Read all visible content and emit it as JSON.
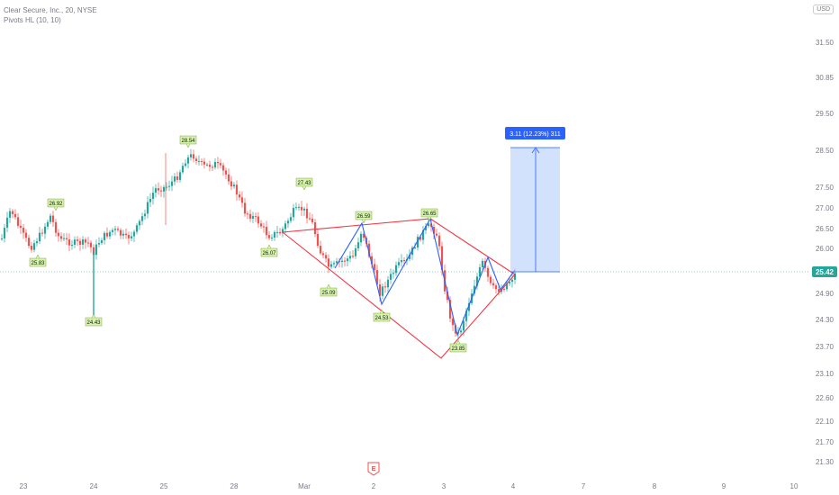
{
  "header": {
    "symbol_line": "Clear Secure, Inc., 20, NYSE",
    "indicator_line": "Pivots HL (10, 10)",
    "currency_badge": "USD"
  },
  "chart_data": {
    "type": "candlestick",
    "y_ticks": [
      "31.50",
      "30.85",
      "29.50",
      "28.50",
      "27.50",
      "27.00",
      "26.50",
      "26.00",
      "25.42",
      "24.90",
      "24.30",
      "23.70",
      "23.10",
      "22.60",
      "22.10",
      "21.70",
      "21.30"
    ],
    "x_ticks": [
      "23",
      "24",
      "25",
      "28",
      "Mar",
      "2",
      "3",
      "4",
      "7",
      "8",
      "9",
      "10"
    ],
    "last_price": "25.42",
    "pivot_labels": [
      "26.92",
      "25.83",
      "24.43",
      "28.54",
      "27.43",
      "26.07",
      "26.59",
      "25.09",
      "26.65",
      "24.53",
      "23.85"
    ],
    "measure_label": "3.11 (12.23%) 311",
    "colors": {
      "up": "#26a69a",
      "down": "#ef5350",
      "pattern": "#f23645",
      "zigzag": "#2962ff",
      "measure_fill": "#bcd3fb",
      "measure_tag": "#2962ff",
      "pivot_fill": "#d6f5a8",
      "price_tag": "#26a69a"
    },
    "earnings_marker": "E"
  }
}
